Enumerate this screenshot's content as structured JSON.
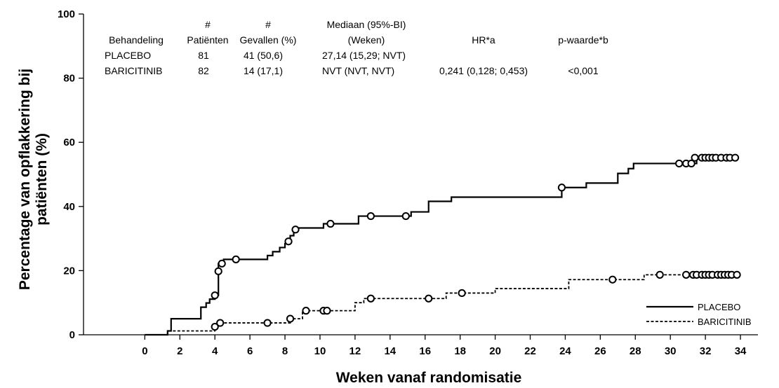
{
  "chart_data": {
    "type": "line",
    "xlabel": "Weken vanaf randomisatie",
    "ylabel_line1": "Percentage van opflakkering bij",
    "ylabel_line2": "patiënten  (%)",
    "xlim": [
      -3.5,
      35
    ],
    "ylim": [
      0,
      100
    ],
    "x_ticks": [
      0,
      2,
      4,
      6,
      8,
      10,
      12,
      14,
      16,
      18,
      20,
      22,
      24,
      26,
      28,
      30,
      32,
      34
    ],
    "y_ticks": [
      0,
      20,
      40,
      60,
      80,
      100
    ],
    "grid": false,
    "legend_position": "bottom-right",
    "series": [
      {
        "name": "PLACEBO",
        "style": "solid",
        "steps": [
          [
            0,
            0
          ],
          [
            1.3,
            1.2
          ],
          [
            1.5,
            5
          ],
          [
            3.2,
            8.6
          ],
          [
            3.5,
            9.9
          ],
          [
            3.7,
            11.1
          ],
          [
            4.0,
            12.3
          ],
          [
            4.2,
            22.2
          ],
          [
            4.5,
            23.5
          ],
          [
            7.0,
            24.7
          ],
          [
            7.3,
            25.9
          ],
          [
            7.7,
            27.2
          ],
          [
            8.0,
            28.4
          ],
          [
            8.3,
            30.9
          ],
          [
            8.5,
            32.1
          ],
          [
            8.6,
            33.3
          ],
          [
            10.2,
            34.6
          ],
          [
            12.2,
            37.0
          ],
          [
            15.2,
            38.3
          ],
          [
            16.2,
            41.6
          ],
          [
            17.5,
            42.9
          ],
          [
            23.8,
            45.9
          ],
          [
            25.2,
            47.3
          ],
          [
            27.0,
            50.3
          ],
          [
            27.6,
            51.8
          ],
          [
            27.9,
            53.4
          ],
          [
            31.5,
            55.2
          ]
        ],
        "x_end": 33.7,
        "censored": [
          [
            4.0,
            12.3
          ],
          [
            4.2,
            19.8
          ],
          [
            4.4,
            22.2
          ],
          [
            5.2,
            23.5
          ],
          [
            8.2,
            29.1
          ],
          [
            8.6,
            32.8
          ],
          [
            10.6,
            34.6
          ],
          [
            12.9,
            37.0
          ],
          [
            14.9,
            37.0
          ],
          [
            23.8,
            45.9
          ],
          [
            30.5,
            53.4
          ],
          [
            30.9,
            53.4
          ],
          [
            31.2,
            53.4
          ],
          [
            31.4,
            55.2
          ],
          [
            31.8,
            55.2
          ],
          [
            32.0,
            55.2
          ],
          [
            32.2,
            55.2
          ],
          [
            32.4,
            55.2
          ],
          [
            32.6,
            55.2
          ],
          [
            32.9,
            55.2
          ],
          [
            33.2,
            55.2
          ],
          [
            33.4,
            55.2
          ],
          [
            33.7,
            55.2
          ]
        ]
      },
      {
        "name": "BARICITINIB",
        "style": "dashed",
        "steps": [
          [
            0,
            0
          ],
          [
            1.3,
            1.2
          ],
          [
            4.0,
            2.5
          ],
          [
            4.2,
            3.7
          ],
          [
            8.3,
            5.0
          ],
          [
            9.0,
            7.5
          ],
          [
            12.0,
            10.0
          ],
          [
            12.5,
            11.3
          ],
          [
            17.2,
            13.0
          ],
          [
            20.0,
            14.4
          ],
          [
            24.2,
            17.2
          ],
          [
            28.5,
            18.7
          ]
        ],
        "x_end": 33.8,
        "censored": [
          [
            4.0,
            2.5
          ],
          [
            4.3,
            3.7
          ],
          [
            7.0,
            3.7
          ],
          [
            8.3,
            5.0
          ],
          [
            9.2,
            7.5
          ],
          [
            10.2,
            7.5
          ],
          [
            10.4,
            7.5
          ],
          [
            12.9,
            11.3
          ],
          [
            16.2,
            11.3
          ],
          [
            18.1,
            13.0
          ],
          [
            26.7,
            17.2
          ],
          [
            29.4,
            18.7
          ],
          [
            30.9,
            18.7
          ],
          [
            31.3,
            18.7
          ],
          [
            31.5,
            18.7
          ],
          [
            31.8,
            18.7
          ],
          [
            32.0,
            18.7
          ],
          [
            32.2,
            18.7
          ],
          [
            32.4,
            18.7
          ],
          [
            32.7,
            18.7
          ],
          [
            32.9,
            18.7
          ],
          [
            33.1,
            18.7
          ],
          [
            33.3,
            18.7
          ],
          [
            33.5,
            18.7
          ],
          [
            33.8,
            18.7
          ]
        ]
      }
    ],
    "table": {
      "headers": [
        [
          "",
          "Behandeling"
        ],
        [
          "#",
          "Patiënten"
        ],
        [
          "#",
          "Gevallen (%)"
        ],
        [
          "Mediaan (95%-BI)",
          "(Weken)"
        ],
        [
          "",
          "HR*a"
        ],
        [
          "",
          "p-waarde*b"
        ]
      ],
      "rows": [
        [
          "PLACEBO",
          "81",
          "41 (50,6)",
          "27,14 (15,29; NVT)",
          "",
          ""
        ],
        [
          "BARICITINIB",
          "82",
          "14 (17,1)",
          "NVT (NVT, NVT)",
          "0,241 (0,128; 0,453)",
          "<0,001"
        ]
      ]
    }
  }
}
